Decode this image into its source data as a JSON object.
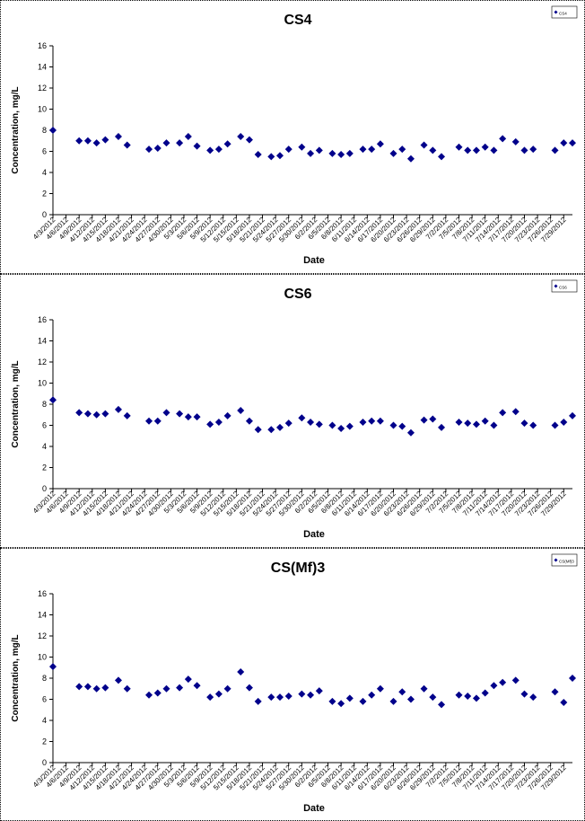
{
  "marker_color": "#00008B",
  "chart_data": [
    {
      "type": "scatter",
      "title": "CS4",
      "legend_label": "CS4",
      "legend_position": "top-right",
      "xlabel": "Date",
      "ylabel": "Concentration, mg/L",
      "ylim": [
        0,
        16
      ],
      "yticks": [
        0,
        2,
        4,
        6,
        8,
        10,
        12,
        14,
        16
      ],
      "grid": false,
      "x_range": [
        "4/3/2012",
        "7/31/2012"
      ],
      "xticks": [
        "4/3/2012",
        "4/6/2012",
        "4/9/2012",
        "4/12/2012",
        "4/15/2012",
        "4/18/2012",
        "4/21/2012",
        "4/24/2012",
        "4/27/2012",
        "4/30/2012",
        "5/3/2012",
        "5/6/2012",
        "5/9/2012",
        "5/12/2012",
        "5/15/2012",
        "5/18/2012",
        "5/21/2012",
        "5/24/2012",
        "5/27/2012",
        "5/30/2012",
        "6/2/2012",
        "6/5/2012",
        "6/8/2012",
        "6/11/2012",
        "6/14/2012",
        "6/17/2012",
        "6/20/2012",
        "6/23/2012",
        "6/26/2012",
        "6/29/2012",
        "7/2/2012",
        "7/5/2012",
        "7/8/2012",
        "7/11/2012",
        "7/14/2012",
        "7/17/2012",
        "7/20/2012",
        "7/23/2012",
        "7/26/2012",
        "7/29/2012"
      ],
      "series": [
        {
          "x": [
            "4/3/2012",
            "4/9/2012",
            "4/11/2012",
            "4/13/2012",
            "4/15/2012",
            "4/18/2012",
            "4/20/2012",
            "4/25/2012",
            "4/27/2012",
            "4/29/2012",
            "5/2/2012",
            "5/4/2012",
            "5/6/2012",
            "5/9/2012",
            "5/11/2012",
            "5/13/2012",
            "5/16/2012",
            "5/18/2012",
            "5/20/2012",
            "5/23/2012",
            "5/25/2012",
            "5/27/2012",
            "5/30/2012",
            "6/1/2012",
            "6/3/2012",
            "6/6/2012",
            "6/8/2012",
            "6/10/2012",
            "6/13/2012",
            "6/15/2012",
            "6/17/2012",
            "6/20/2012",
            "6/22/2012",
            "6/24/2012",
            "6/27/2012",
            "6/29/2012",
            "7/1/2012",
            "7/5/2012",
            "7/7/2012",
            "7/9/2012",
            "7/11/2012",
            "7/13/2012",
            "7/15/2012",
            "7/18/2012",
            "7/20/2012",
            "7/22/2012",
            "7/27/2012",
            "7/29/2012",
            "7/31/2012"
          ],
          "y": [
            8.0,
            7.0,
            7.0,
            6.8,
            7.1,
            7.4,
            6.6,
            6.2,
            6.3,
            6.8,
            6.8,
            7.4,
            6.5,
            6.1,
            6.2,
            6.7,
            7.4,
            7.1,
            5.7,
            5.5,
            5.6,
            6.2,
            6.4,
            5.8,
            6.1,
            5.8,
            5.7,
            5.8,
            6.2,
            6.2,
            6.7,
            5.8,
            6.2,
            5.3,
            6.6,
            6.1,
            5.5,
            6.4,
            6.1,
            6.1,
            6.4,
            6.1,
            7.2,
            6.9,
            6.1,
            6.2,
            6.1,
            6.8,
            6.8
          ]
        }
      ]
    },
    {
      "type": "scatter",
      "title": "CS6",
      "legend_label": "CS6",
      "legend_position": "top-right",
      "xlabel": "Date",
      "ylabel": "Concentration, mg/L",
      "ylim": [
        0,
        16
      ],
      "yticks": [
        0,
        2,
        4,
        6,
        8,
        10,
        12,
        14,
        16
      ],
      "grid": false,
      "x_range": [
        "4/3/2012",
        "7/31/2012"
      ],
      "xticks": [
        "4/3/2012",
        "4/6/2012",
        "4/9/2012",
        "4/12/2012",
        "4/15/2012",
        "4/18/2012",
        "4/21/2012",
        "4/24/2012",
        "4/27/2012",
        "4/30/2012",
        "5/3/2012",
        "5/6/2012",
        "5/9/2012",
        "5/12/2012",
        "5/15/2012",
        "5/18/2012",
        "5/21/2012",
        "5/24/2012",
        "5/27/2012",
        "5/30/2012",
        "6/2/2012",
        "6/5/2012",
        "6/8/2012",
        "6/11/2012",
        "6/14/2012",
        "6/17/2012",
        "6/20/2012",
        "6/23/2012",
        "6/26/2012",
        "6/29/2012",
        "7/2/2012",
        "7/5/2012",
        "7/8/2012",
        "7/11/2012",
        "7/14/2012",
        "7/17/2012",
        "7/20/2012",
        "7/23/2012",
        "7/26/2012",
        "7/29/2012"
      ],
      "series": [
        {
          "x": [
            "4/3/2012",
            "4/9/2012",
            "4/11/2012",
            "4/13/2012",
            "4/15/2012",
            "4/18/2012",
            "4/20/2012",
            "4/25/2012",
            "4/27/2012",
            "4/29/2012",
            "5/2/2012",
            "5/4/2012",
            "5/6/2012",
            "5/9/2012",
            "5/11/2012",
            "5/13/2012",
            "5/16/2012",
            "5/18/2012",
            "5/20/2012",
            "5/23/2012",
            "5/25/2012",
            "5/27/2012",
            "5/30/2012",
            "6/1/2012",
            "6/3/2012",
            "6/6/2012",
            "6/8/2012",
            "6/10/2012",
            "6/13/2012",
            "6/15/2012",
            "6/17/2012",
            "6/20/2012",
            "6/22/2012",
            "6/24/2012",
            "6/27/2012",
            "6/29/2012",
            "7/1/2012",
            "7/5/2012",
            "7/7/2012",
            "7/9/2012",
            "7/11/2012",
            "7/13/2012",
            "7/15/2012",
            "7/18/2012",
            "7/20/2012",
            "7/22/2012",
            "7/27/2012",
            "7/29/2012",
            "7/31/2012"
          ],
          "y": [
            8.4,
            7.2,
            7.1,
            7.0,
            7.1,
            7.5,
            6.9,
            6.4,
            6.4,
            7.2,
            7.1,
            6.8,
            6.8,
            6.1,
            6.3,
            6.9,
            7.4,
            6.4,
            5.6,
            5.6,
            5.8,
            6.2,
            6.7,
            6.3,
            6.1,
            6.0,
            5.7,
            5.9,
            6.3,
            6.4,
            6.4,
            6.0,
            5.9,
            5.3,
            6.5,
            6.6,
            5.8,
            6.3,
            6.2,
            6.1,
            6.4,
            6.0,
            7.2,
            7.3,
            6.2,
            6.0,
            6.0,
            6.3,
            6.9
          ]
        }
      ]
    },
    {
      "type": "scatter",
      "title": "CS(Mf)3",
      "legend_label": "CS(Mf)3",
      "legend_position": "top-right",
      "xlabel": "Date",
      "ylabel": "Concentration, mg/L",
      "ylim": [
        0,
        16
      ],
      "yticks": [
        0,
        2,
        4,
        6,
        8,
        10,
        12,
        14,
        16
      ],
      "grid": false,
      "x_range": [
        "4/3/2012",
        "7/31/2012"
      ],
      "xticks": [
        "4/3/2012",
        "4/6/2012",
        "4/9/2012",
        "4/12/2012",
        "4/15/2012",
        "4/18/2012",
        "4/21/2012",
        "4/24/2012",
        "4/27/2012",
        "4/30/2012",
        "5/3/2012",
        "5/6/2012",
        "5/9/2012",
        "5/12/2012",
        "5/15/2012",
        "5/18/2012",
        "5/21/2012",
        "5/24/2012",
        "5/27/2012",
        "5/30/2012",
        "6/2/2012",
        "6/5/2012",
        "6/8/2012",
        "6/11/2012",
        "6/14/2012",
        "6/17/2012",
        "6/20/2012",
        "6/23/2012",
        "6/26/2012",
        "6/29/2012",
        "7/2/2012",
        "7/5/2012",
        "7/8/2012",
        "7/11/2012",
        "7/14/2012",
        "7/17/2012",
        "7/20/2012",
        "7/23/2012",
        "7/26/2012",
        "7/29/2012"
      ],
      "series": [
        {
          "x": [
            "4/3/2012",
            "4/9/2012",
            "4/11/2012",
            "4/13/2012",
            "4/15/2012",
            "4/18/2012",
            "4/20/2012",
            "4/25/2012",
            "4/27/2012",
            "4/29/2012",
            "5/2/2012",
            "5/4/2012",
            "5/6/2012",
            "5/9/2012",
            "5/11/2012",
            "5/13/2012",
            "5/16/2012",
            "5/18/2012",
            "5/20/2012",
            "5/23/2012",
            "5/25/2012",
            "5/27/2012",
            "5/30/2012",
            "6/1/2012",
            "6/3/2012",
            "6/6/2012",
            "6/8/2012",
            "6/10/2012",
            "6/13/2012",
            "6/15/2012",
            "6/17/2012",
            "6/20/2012",
            "6/22/2012",
            "6/24/2012",
            "6/27/2012",
            "6/29/2012",
            "7/1/2012",
            "7/5/2012",
            "7/7/2012",
            "7/9/2012",
            "7/11/2012",
            "7/13/2012",
            "7/15/2012",
            "7/18/2012",
            "7/20/2012",
            "7/22/2012",
            "7/27/2012",
            "7/29/2012",
            "7/31/2012"
          ],
          "y": [
            9.1,
            7.2,
            7.2,
            7.0,
            7.1,
            7.8,
            7.0,
            6.4,
            6.6,
            7.0,
            7.1,
            7.9,
            7.3,
            6.2,
            6.5,
            7.0,
            8.6,
            7.1,
            5.8,
            6.2,
            6.2,
            6.3,
            6.5,
            6.4,
            6.8,
            5.8,
            5.6,
            6.1,
            5.8,
            6.4,
            7.0,
            5.8,
            6.7,
            6.0,
            7.0,
            6.2,
            5.5,
            6.4,
            6.3,
            6.1,
            6.6,
            7.3,
            7.6,
            7.8,
            6.5,
            6.2,
            6.7,
            5.7,
            8.0
          ]
        }
      ]
    }
  ]
}
